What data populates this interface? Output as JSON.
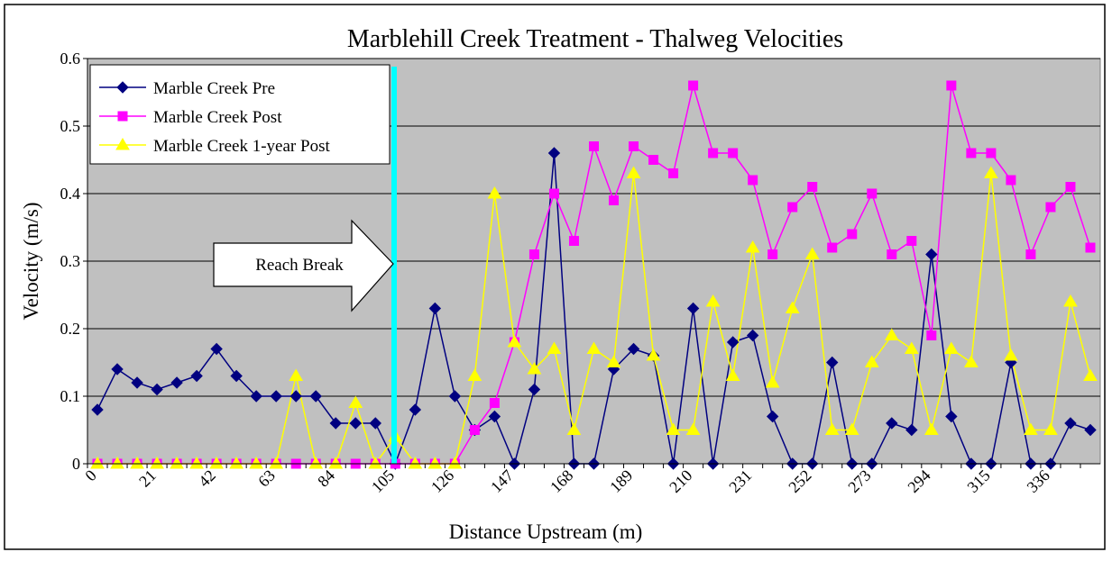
{
  "chart_data": {
    "type": "line",
    "title": "Marblehill Creek Treatment - Thalweg Velocities",
    "x_label": "Distance Upstream (m)",
    "y_label": "Velocity (m/s)",
    "annotation": "Reach Break",
    "categories": [
      "0",
      null,
      null,
      "21",
      null,
      null,
      "42",
      null,
      null,
      "63",
      null,
      null,
      "84",
      null,
      null,
      "105",
      null,
      null,
      "126",
      null,
      null,
      "147",
      null,
      null,
      "168",
      null,
      null,
      "189",
      null,
      null,
      "210",
      null,
      null,
      "231",
      null,
      null,
      "252",
      null,
      null,
      "273",
      null,
      null,
      "294",
      null,
      null,
      "315",
      null,
      null,
      "336",
      null,
      null
    ],
    "series": [
      {
        "name": "Marble Creek Pre",
        "color": "#000080",
        "marker": "diamond",
        "values": [
          0.08,
          0.14,
          0.12,
          0.11,
          0.12,
          0.13,
          0.17,
          0.13,
          0.1,
          0.1,
          0.1,
          0.1,
          0.06,
          0.06,
          0.06,
          0,
          0.08,
          0.23,
          0.1,
          0.05,
          0.07,
          0,
          0.11,
          0.46,
          0,
          0,
          0.14,
          0.17,
          0.16,
          0,
          0.23,
          0,
          0.18,
          0.19,
          0.07,
          0,
          0,
          0.15,
          0,
          0,
          0.06,
          0.05,
          0.31,
          0.07,
          0,
          0,
          0.15,
          0,
          0,
          0.06,
          0.05
        ]
      },
      {
        "name": "Marble Creek Post",
        "color": "#FF00FF",
        "marker": "square",
        "values": [
          0,
          0,
          0,
          0,
          0,
          0,
          0,
          0,
          0,
          0,
          0,
          0,
          0,
          0,
          0,
          0,
          0,
          0,
          0,
          0.05,
          0.09,
          0.18,
          0.31,
          0.4,
          0.33,
          0.47,
          0.39,
          0.47,
          0.45,
          0.43,
          0.56,
          0.46,
          0.46,
          0.42,
          0.31,
          0.38,
          0.41,
          0.32,
          0.34,
          0.4,
          0.31,
          0.33,
          0.19,
          0.56,
          0.46,
          0.46,
          0.42,
          0.31,
          0.38,
          0.41,
          0.32
        ]
      },
      {
        "name": "Marble Creek 1-year Post",
        "color": "#FFFF00",
        "marker": "triangle",
        "values": [
          0,
          0,
          0,
          0,
          0,
          0,
          0,
          0,
          0,
          0,
          0.13,
          0,
          0,
          0.09,
          0,
          0.04,
          0,
          0,
          0,
          0.13,
          0.4,
          0.18,
          0.14,
          0.17,
          0.05,
          0.17,
          0.15,
          0.43,
          0.16,
          0.05,
          0.05,
          0.24,
          0.13,
          0.32,
          0.12,
          0.23,
          0.31,
          0.05,
          0.05,
          0.15,
          0.19,
          0.17,
          0.05,
          0.17,
          0.15,
          0.43,
          0.16,
          0.05,
          0.05,
          0.24,
          0.13
        ]
      }
    ],
    "ylim": [
      0,
      0.6
    ],
    "yticks": [
      0,
      0.1,
      0.2,
      0.3,
      0.4,
      0.5,
      0.6
    ],
    "grid": true,
    "legend": "top-left",
    "background": "#C0C0C0"
  }
}
